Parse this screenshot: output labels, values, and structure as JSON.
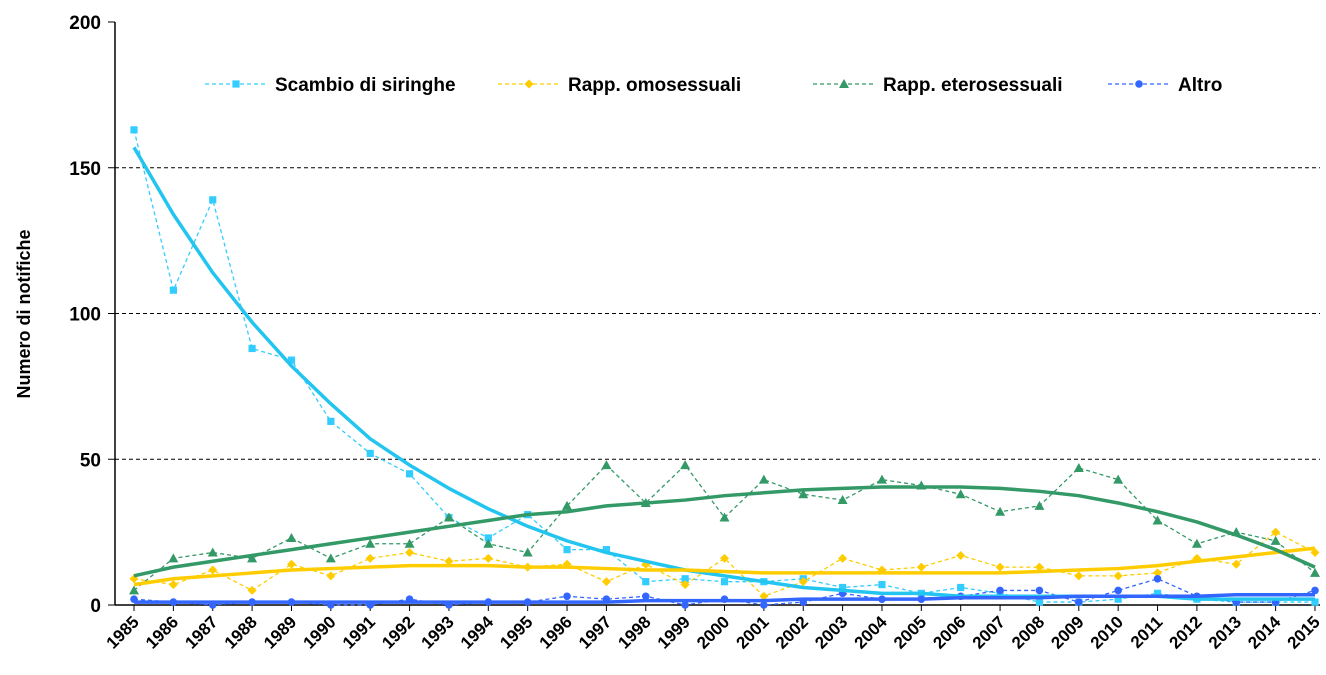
{
  "chart_data": {
    "type": "line",
    "y_label": "Numero di notifiche",
    "categories": [
      "1985",
      "1986",
      "1987",
      "1988",
      "1989",
      "1990",
      "1991",
      "1992",
      "1993",
      "1994",
      "1995",
      "1996",
      "1997",
      "1998",
      "1999",
      "2000",
      "2001",
      "2002",
      "2003",
      "2004",
      "2005",
      "2006",
      "2007",
      "2008",
      "2009",
      "2010",
      "2011",
      "2012",
      "2013",
      "2014",
      "2015"
    ],
    "ylim": [
      0,
      200
    ],
    "yticks": [
      0,
      50,
      100,
      150,
      200
    ],
    "grid": true,
    "series": [
      {
        "name": "Scambio di siringhe",
        "color": "#33ccff",
        "marker": "square",
        "values": [
          163,
          108,
          139,
          88,
          84,
          63,
          52,
          45,
          30,
          23,
          31,
          19,
          19,
          8,
          9,
          8,
          8,
          9,
          6,
          7,
          4,
          6,
          4,
          1,
          1,
          2,
          4,
          2,
          1,
          1,
          1
        ],
        "trend_color": "#22c4f0",
        "trend": [
          157,
          134,
          114,
          97,
          82,
          69,
          57,
          48,
          40,
          33,
          27,
          22,
          18,
          15,
          12,
          10,
          8,
          6,
          5,
          4,
          4,
          3,
          3,
          3,
          3,
          3,
          3,
          2,
          2,
          2,
          2
        ]
      },
      {
        "name": "Rapp. omosessuali",
        "color": "#ffcc00",
        "marker": "diamond",
        "values": [
          9,
          7,
          12,
          5,
          14,
          10,
          16,
          18,
          15,
          16,
          13,
          14,
          8,
          14,
          7,
          16,
          3,
          8,
          16,
          12,
          13,
          17,
          13,
          13,
          10,
          10,
          11,
          16,
          14,
          25,
          18
        ],
        "trend_color": "#ffcc00",
        "trend": [
          7,
          9,
          10,
          11,
          12,
          12.5,
          13,
          13.5,
          13.5,
          13.5,
          13,
          13,
          12.5,
          12,
          12,
          11.5,
          11,
          11,
          11,
          11,
          11,
          11,
          11,
          11.5,
          12,
          12.5,
          13.5,
          15,
          16.5,
          18,
          19.5
        ]
      },
      {
        "name": "Rapp. eterosessuali",
        "color": "#339966",
        "marker": "triangle",
        "values": [
          5,
          16,
          18,
          16,
          23,
          16,
          21,
          21,
          30,
          21,
          18,
          34,
          48,
          35,
          48,
          30,
          43,
          38,
          36,
          43,
          41,
          38,
          32,
          34,
          47,
          43,
          29,
          21,
          25,
          22,
          11
        ],
        "trend_color": "#339966",
        "trend": [
          10,
          13,
          15,
          17,
          19,
          21,
          23,
          25,
          27,
          29,
          31,
          32,
          34,
          35,
          36,
          37.5,
          38.5,
          39.5,
          40,
          40.5,
          40.5,
          40.5,
          40,
          39,
          37.5,
          35,
          32,
          28.5,
          24,
          19,
          13
        ]
      },
      {
        "name": "Altro",
        "color": "#3366ff",
        "marker": "circle",
        "values": [
          2,
          1,
          0,
          1,
          1,
          0,
          0,
          2,
          0,
          1,
          1,
          3,
          2,
          3,
          0,
          2,
          0,
          1,
          4,
          2,
          2,
          3,
          5,
          5,
          1,
          5,
          9,
          3,
          1,
          1,
          5
        ],
        "trend_color": "#3366ff",
        "trend": [
          1,
          1,
          1,
          1,
          1,
          1,
          1,
          1,
          1,
          1,
          1,
          1,
          1,
          1.5,
          1.5,
          1.5,
          1.5,
          2,
          2,
          2,
          2,
          2.5,
          2.5,
          2.5,
          3,
          3,
          3,
          3,
          3.5,
          3.5,
          3.5
        ]
      }
    ]
  }
}
